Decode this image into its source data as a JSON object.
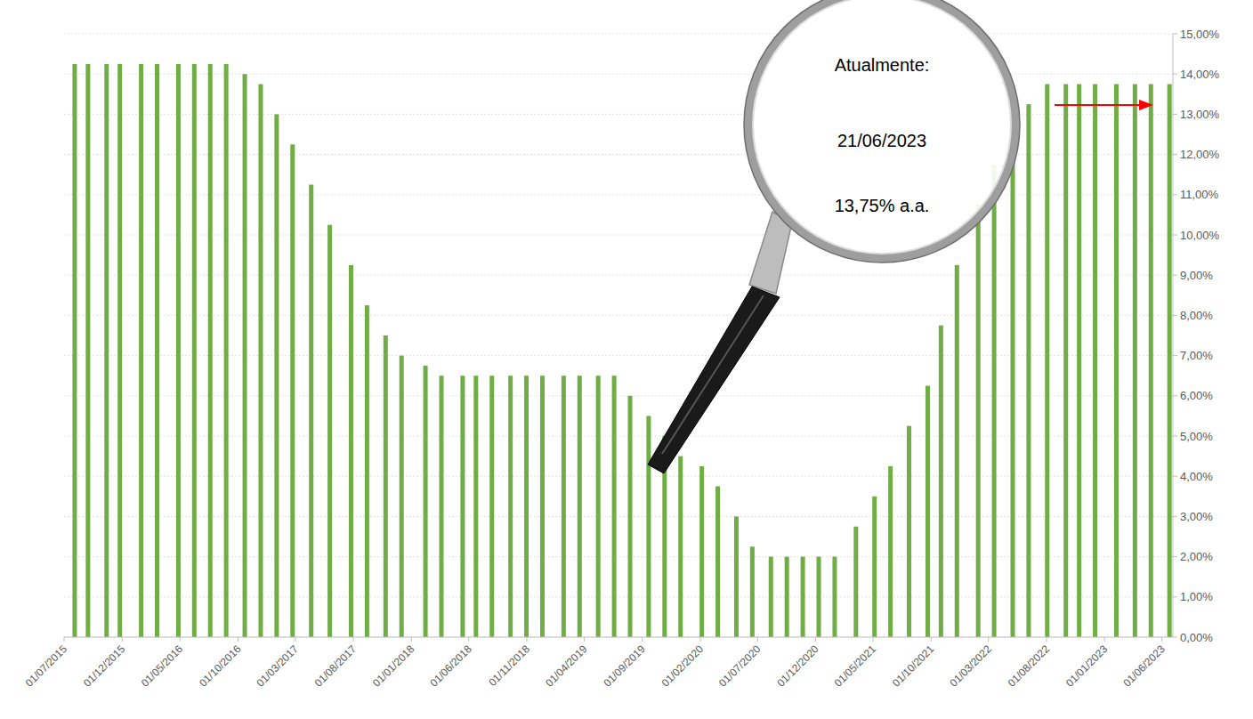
{
  "chart_data": {
    "type": "bar",
    "color": "#70ad47",
    "grid": true,
    "x": [
      "2015-07-29",
      "2015-09-02",
      "2015-10-21",
      "2015-11-25",
      "2016-01-20",
      "2016-03-02",
      "2016-04-27",
      "2016-06-08",
      "2016-07-20",
      "2016-08-31",
      "2016-10-19",
      "2016-11-30",
      "2017-01-11",
      "2017-02-22",
      "2017-04-12",
      "2017-05-31",
      "2017-07-26",
      "2017-09-06",
      "2017-10-25",
      "2017-12-06",
      "2018-02-07",
      "2018-03-21",
      "2018-05-16",
      "2018-06-20",
      "2018-08-01",
      "2018-09-19",
      "2018-10-31",
      "2018-12-12",
      "2019-02-06",
      "2019-03-20",
      "2019-05-08",
      "2019-06-19",
      "2019-07-31",
      "2019-09-18",
      "2019-10-30",
      "2019-12-11",
      "2020-02-05",
      "2020-03-18",
      "2020-05-06",
      "2020-06-17",
      "2020-08-05",
      "2020-09-16",
      "2020-10-28",
      "2020-12-09",
      "2021-01-20",
      "2021-03-17",
      "2021-05-05",
      "2021-06-16",
      "2021-08-04",
      "2021-09-22",
      "2021-10-27",
      "2021-12-08",
      "2022-02-02",
      "2022-03-16",
      "2022-05-04",
      "2022-06-15",
      "2022-08-03",
      "2022-09-21",
      "2022-10-26",
      "2022-12-07",
      "2023-02-01",
      "2023-03-22",
      "2023-05-03",
      "2023-06-21"
    ],
    "values": [
      14.25,
      14.25,
      14.25,
      14.25,
      14.25,
      14.25,
      14.25,
      14.25,
      14.25,
      14.25,
      14,
      13.75,
      13,
      12.25,
      11.25,
      10.25,
      9.25,
      8.25,
      7.5,
      7,
      6.75,
      6.5,
      6.5,
      6.5,
      6.5,
      6.5,
      6.5,
      6.5,
      6.5,
      6.5,
      6.5,
      6.5,
      6,
      5.5,
      5,
      4.5,
      4.25,
      3.75,
      3,
      2.25,
      2,
      2,
      2,
      2,
      2,
      2.75,
      3.5,
      4.25,
      5.25,
      6.25,
      7.75,
      9.25,
      10.75,
      11.75,
      12.75,
      13.25,
      13.75,
      13.75,
      13.75,
      13.75,
      13.75,
      13.75,
      13.75,
      13.75
    ],
    "xlim": [
      "2015-07-01",
      "2023-06-30"
    ],
    "xticks": [
      {
        "value": "2015-07-01",
        "label": "01/07/2015"
      },
      {
        "value": "2015-12-01",
        "label": "01/12/2015"
      },
      {
        "value": "2016-05-01",
        "label": "01/05/2016"
      },
      {
        "value": "2016-10-01",
        "label": "01/10/2016"
      },
      {
        "value": "2017-03-01",
        "label": "01/03/2017"
      },
      {
        "value": "2017-08-01",
        "label": "01/08/2017"
      },
      {
        "value": "2018-01-01",
        "label": "01/01/2018"
      },
      {
        "value": "2018-06-01",
        "label": "01/06/2018"
      },
      {
        "value": "2018-11-01",
        "label": "01/11/2018"
      },
      {
        "value": "2019-04-01",
        "label": "01/04/2019"
      },
      {
        "value": "2019-09-01",
        "label": "01/09/2019"
      },
      {
        "value": "2020-02-01",
        "label": "01/02/2020"
      },
      {
        "value": "2020-07-01",
        "label": "01/07/2020"
      },
      {
        "value": "2020-12-01",
        "label": "01/12/2020"
      },
      {
        "value": "2021-05-01",
        "label": "01/05/2021"
      },
      {
        "value": "2021-10-01",
        "label": "01/10/2021"
      },
      {
        "value": "2022-03-01",
        "label": "01/03/2022"
      },
      {
        "value": "2022-08-01",
        "label": "01/08/2022"
      },
      {
        "value": "2023-01-01",
        "label": "01/01/2023"
      },
      {
        "value": "2023-06-01",
        "label": "01/06/2023"
      }
    ],
    "ylim": [
      0,
      15
    ],
    "yticks": [
      {
        "value": 0,
        "label": "0,00%"
      },
      {
        "value": 1,
        "label": "1,00%"
      },
      {
        "value": 2,
        "label": "2,00%"
      },
      {
        "value": 3,
        "label": "3,00%"
      },
      {
        "value": 4,
        "label": "4,00%"
      },
      {
        "value": 5,
        "label": "5,00%"
      },
      {
        "value": 6,
        "label": "6,00%"
      },
      {
        "value": 7,
        "label": "7,00%"
      },
      {
        "value": 8,
        "label": "8,00%"
      },
      {
        "value": 9,
        "label": "9,00%"
      },
      {
        "value": 10,
        "label": "10,00%"
      },
      {
        "value": 11,
        "label": "11,00%"
      },
      {
        "value": 12,
        "label": "12,00%"
      },
      {
        "value": 13,
        "label": "13,00%"
      },
      {
        "value": 14,
        "label": "14,00%"
      },
      {
        "value": 15,
        "label": "15,00%"
      }
    ],
    "annotations": [
      "Atualmente:",
      "21/06/2023",
      "13,75% a.a."
    ]
  }
}
